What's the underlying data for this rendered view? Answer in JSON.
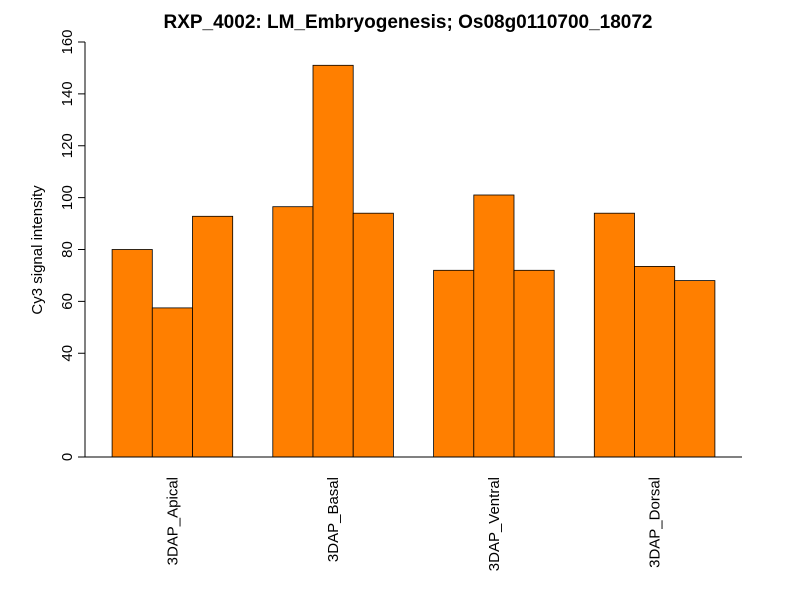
{
  "chart_data": {
    "type": "bar",
    "title": "RXP_4002: LM_Embryogenesis; Os08g0110700_18072",
    "xlabel": "",
    "ylabel": "Cy3 signal intensity",
    "ylim": [
      0,
      160
    ],
    "y_ticks": [
      0,
      40,
      60,
      80,
      100,
      120,
      140,
      160
    ],
    "categories": [
      "3DAP_Apical",
      "3DAP_Basal",
      "3DAP_Ventral",
      "3DAP_Dorsal"
    ],
    "bars_per_category": 3,
    "values": [
      [
        80,
        57.5,
        92.8
      ],
      [
        96.5,
        151,
        94
      ],
      [
        72,
        101,
        72
      ],
      [
        94,
        73.5,
        68
      ]
    ],
    "bar_color": "#FF7F00",
    "grid": false,
    "legend": "none"
  }
}
